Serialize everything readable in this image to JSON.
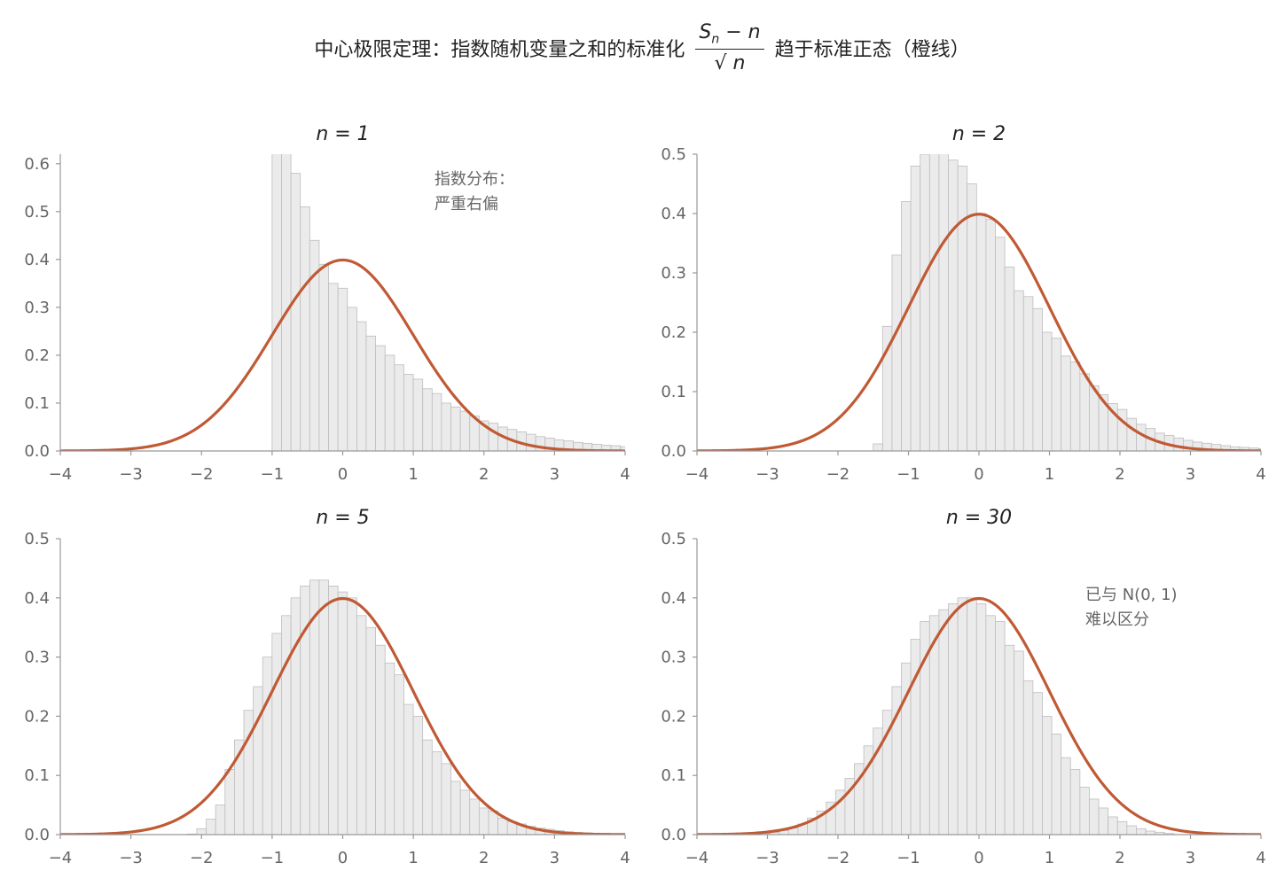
{
  "suptitle": {
    "prefix": "中心极限定理：指数随机变量之和的标准化",
    "fraction_numerator": "S",
    "fraction_numerator_sub": "n",
    "fraction_numerator_rest": " − n",
    "fraction_denominator": "√ n",
    "suffix": "趋于标准正态（橙线）"
  },
  "colors": {
    "bar_fill": "#ebebeb",
    "bar_edge": "#bdbdbd",
    "curve": "#c05a35",
    "axis": "#999999"
  },
  "chart_data": [
    {
      "type": "bar",
      "title": "n = 1",
      "xlim": [
        -4,
        4
      ],
      "ylim": [
        0,
        0.62
      ],
      "xticks": [
        -4,
        -3,
        -2,
        -1,
        0,
        1,
        2,
        3,
        4
      ],
      "yticks": [
        0.0,
        0.1,
        0.2,
        0.3,
        0.4,
        0.5,
        0.6
      ],
      "bin_start": -1.0,
      "bin_width": 0.1333,
      "values": [
        0.66,
        0.65,
        0.58,
        0.51,
        0.44,
        0.39,
        0.35,
        0.34,
        0.3,
        0.27,
        0.24,
        0.22,
        0.2,
        0.18,
        0.16,
        0.15,
        0.13,
        0.12,
        0.1,
        0.092,
        0.083,
        0.073,
        0.063,
        0.058,
        0.05,
        0.045,
        0.04,
        0.035,
        0.03,
        0.027,
        0.023,
        0.021,
        0.018,
        0.016,
        0.014,
        0.012,
        0.011,
        0.009,
        0.008,
        0.007
      ],
      "annotation": [
        "指数分布：",
        "严重右偏"
      ],
      "curve": "N(0,1) density"
    },
    {
      "type": "bar",
      "title": "n = 2",
      "xlim": [
        -4,
        4
      ],
      "ylim": [
        0,
        0.5
      ],
      "xticks": [
        -4,
        -3,
        -2,
        -1,
        0,
        1,
        2,
        3,
        4
      ],
      "yticks": [
        0.0,
        0.1,
        0.2,
        0.3,
        0.4,
        0.5
      ],
      "bin_start": -1.5,
      "bin_width": 0.1333,
      "values": [
        0.012,
        0.21,
        0.33,
        0.42,
        0.48,
        0.5,
        0.53,
        0.53,
        0.49,
        0.48,
        0.45,
        0.4,
        0.39,
        0.36,
        0.31,
        0.27,
        0.26,
        0.24,
        0.2,
        0.19,
        0.16,
        0.15,
        0.13,
        0.11,
        0.095,
        0.08,
        0.07,
        0.055,
        0.045,
        0.038,
        0.03,
        0.026,
        0.022,
        0.018,
        0.015,
        0.013,
        0.011,
        0.009,
        0.007,
        0.006,
        0.005,
        0.004
      ],
      "annotation": [],
      "curve": "N(0,1) density"
    },
    {
      "type": "bar",
      "title": "n = 5",
      "xlim": [
        -4,
        4
      ],
      "ylim": [
        0,
        0.5
      ],
      "xticks": [
        -4,
        -3,
        -2,
        -1,
        0,
        1,
        2,
        3,
        4
      ],
      "yticks": [
        0.0,
        0.1,
        0.2,
        0.3,
        0.4,
        0.5
      ],
      "bin_start": -2.2,
      "bin_width": 0.1333,
      "values": [
        0.001,
        0.01,
        0.026,
        0.05,
        0.11,
        0.16,
        0.21,
        0.25,
        0.3,
        0.34,
        0.37,
        0.4,
        0.42,
        0.43,
        0.43,
        0.42,
        0.41,
        0.4,
        0.37,
        0.35,
        0.32,
        0.29,
        0.27,
        0.22,
        0.2,
        0.16,
        0.14,
        0.12,
        0.09,
        0.075,
        0.06,
        0.045,
        0.04,
        0.028,
        0.022,
        0.018,
        0.014,
        0.011,
        0.009,
        0.007,
        0.005,
        0.004,
        0.003,
        0.002,
        0.002,
        0.001,
        0.001,
        0.001
      ],
      "annotation": [],
      "curve": "N(0,1) density"
    },
    {
      "type": "bar",
      "title": "n = 30",
      "xlim": [
        -4,
        4
      ],
      "ylim": [
        0,
        0.5
      ],
      "xticks": [
        -4,
        -3,
        -2,
        -1,
        0,
        1,
        2,
        3,
        4
      ],
      "yticks": [
        0.0,
        0.1,
        0.2,
        0.3,
        0.4,
        0.5
      ],
      "bin_start": -3.1,
      "bin_width": 0.1333,
      "values": [
        0.002,
        0.004,
        0.007,
        0.011,
        0.018,
        0.028,
        0.04,
        0.055,
        0.075,
        0.095,
        0.12,
        0.15,
        0.18,
        0.21,
        0.25,
        0.29,
        0.33,
        0.36,
        0.37,
        0.38,
        0.39,
        0.4,
        0.4,
        0.39,
        0.37,
        0.36,
        0.32,
        0.31,
        0.26,
        0.24,
        0.2,
        0.17,
        0.13,
        0.11,
        0.08,
        0.06,
        0.045,
        0.03,
        0.022,
        0.015,
        0.01,
        0.006,
        0.004,
        0.002
      ],
      "annotation": [
        "已与 N(0, 1)",
        "难以区分"
      ],
      "curve": "N(0,1) density"
    }
  ]
}
